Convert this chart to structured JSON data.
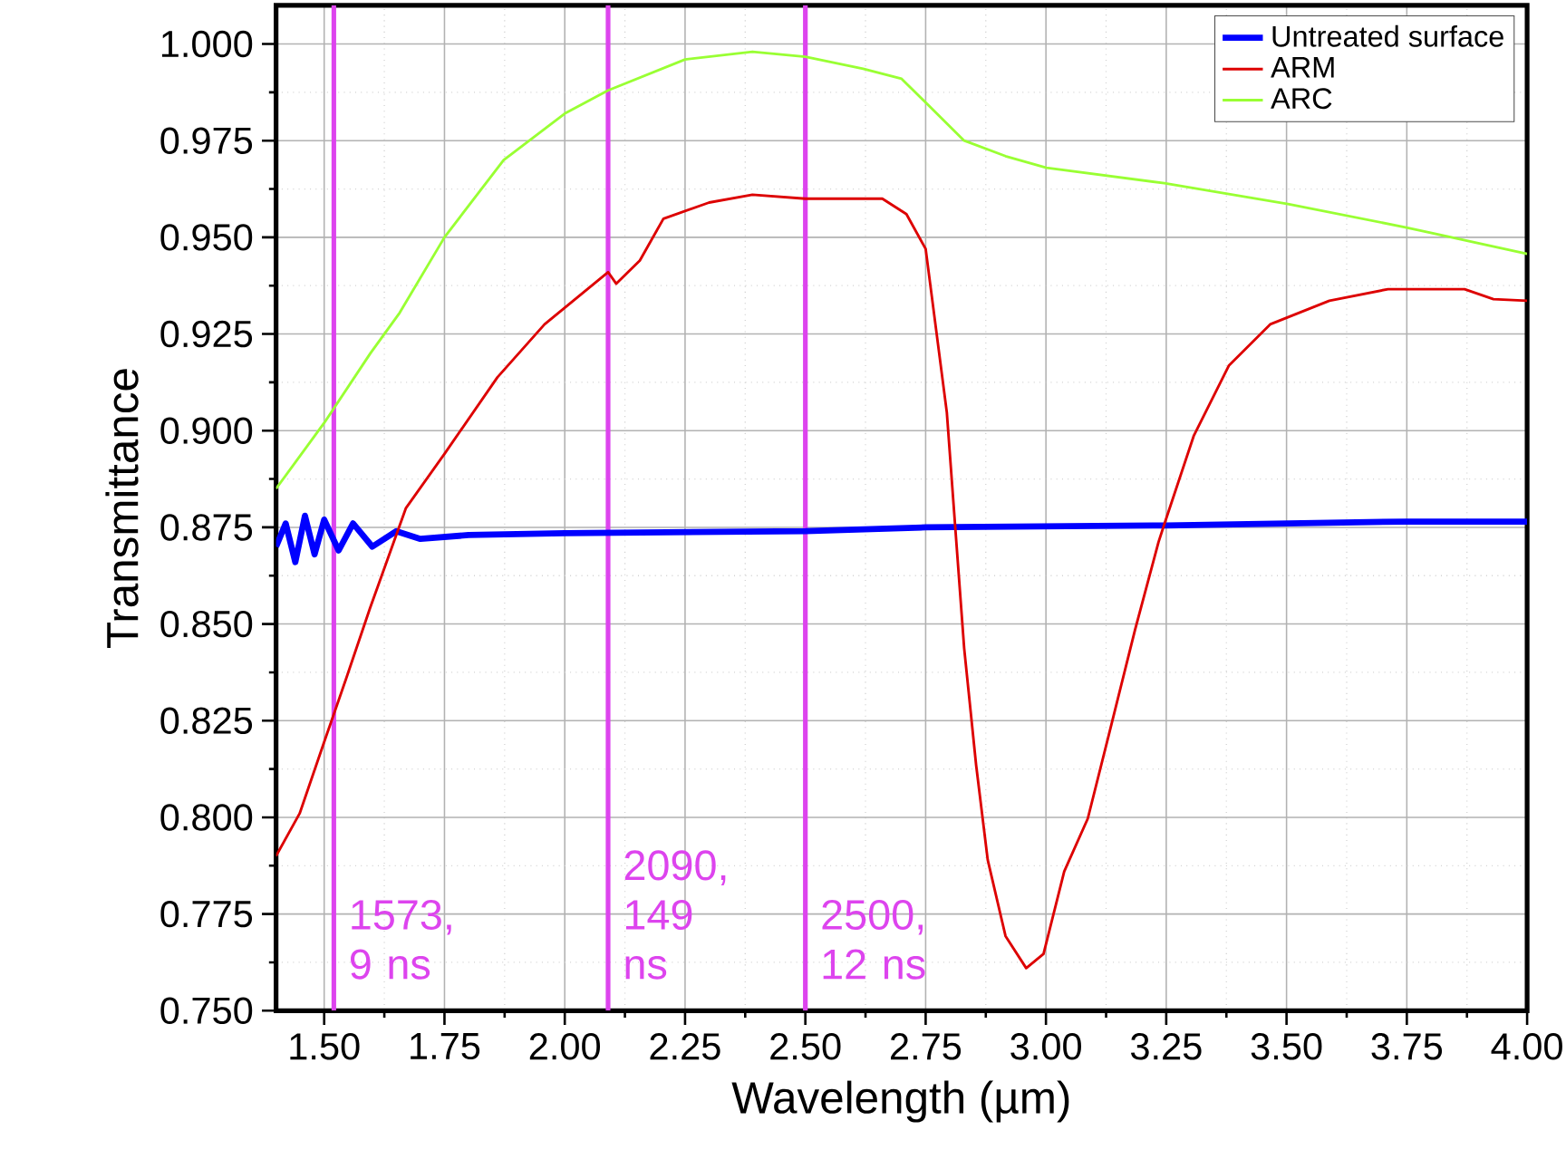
{
  "chart_data": {
    "type": "line",
    "xlabel": "Wavelength (µm)",
    "ylabel": "Transmittance",
    "xlim": [
      1.4,
      4.0
    ],
    "ylim": [
      0.75,
      1.01
    ],
    "xticks": [
      {
        "value": 1.5,
        "label": "1.50"
      },
      {
        "value": 1.75,
        "label": "1.75"
      },
      {
        "value": 2.0,
        "label": "2.00"
      },
      {
        "value": 2.25,
        "label": "2.25"
      },
      {
        "value": 2.5,
        "label": "2.50"
      },
      {
        "value": 2.75,
        "label": "2.75"
      },
      {
        "value": 3.0,
        "label": "3.00"
      },
      {
        "value": 3.25,
        "label": "3.25"
      },
      {
        "value": 3.5,
        "label": "3.50"
      },
      {
        "value": 3.75,
        "label": "3.75"
      },
      {
        "value": 4.0,
        "label": "4.00"
      }
    ],
    "yticks": [
      {
        "value": 0.75,
        "label": "0.750"
      },
      {
        "value": 0.775,
        "label": "0.775"
      },
      {
        "value": 0.8,
        "label": "0.800"
      },
      {
        "value": 0.825,
        "label": "0.825"
      },
      {
        "value": 0.85,
        "label": "0.850"
      },
      {
        "value": 0.875,
        "label": "0.875"
      },
      {
        "value": 0.9,
        "label": "0.900"
      },
      {
        "value": 0.925,
        "label": "0.925"
      },
      {
        "value": 0.95,
        "label": "0.950"
      },
      {
        "value": 0.975,
        "label": "0.975"
      },
      {
        "value": 1.0,
        "label": "1.000"
      }
    ],
    "grid": true,
    "legend": "top right",
    "marker": "none",
    "line_style": "solid",
    "series": [
      {
        "name": "Untreated surface",
        "color": "#0000ff",
        "x": [
          1.4,
          1.42,
          1.44,
          1.46,
          1.48,
          1.5,
          1.53,
          1.56,
          1.6,
          1.65,
          1.7,
          1.8,
          2.0,
          2.5,
          2.75,
          3.25,
          3.75,
          4.0
        ],
        "values": [
          0.87,
          0.876,
          0.866,
          0.878,
          0.868,
          0.877,
          0.869,
          0.876,
          0.87,
          0.874,
          0.872,
          0.873,
          0.8735,
          0.874,
          0.875,
          0.8755,
          0.8765,
          0.8765
        ]
      },
      {
        "name": "ARM",
        "color": "#dd0000",
        "x": [
          1.4,
          1.449,
          1.5,
          1.546,
          1.595,
          1.644,
          1.67,
          1.75,
          1.86,
          1.958,
          2.09,
          2.107,
          2.156,
          2.205,
          2.3,
          2.39,
          2.5,
          2.66,
          2.71,
          2.75,
          2.794,
          2.812,
          2.83,
          2.855,
          2.879,
          2.916,
          2.959,
          2.995,
          3.038,
          3.087,
          3.136,
          3.185,
          3.234,
          3.246,
          3.307,
          3.38,
          3.466,
          3.589,
          3.711,
          3.87,
          3.93,
          4.0
        ],
        "values": [
          0.79,
          0.801,
          0.8195,
          0.836,
          0.854,
          0.871,
          0.88,
          0.894,
          0.9138,
          0.9275,
          0.941,
          0.938,
          0.944,
          0.9548,
          0.959,
          0.961,
          0.96,
          0.96,
          0.956,
          0.947,
          0.9047,
          0.8742,
          0.8438,
          0.8134,
          0.789,
          0.7693,
          0.761,
          0.7647,
          0.786,
          0.7997,
          0.824,
          0.8484,
          0.8712,
          0.8758,
          0.8986,
          0.9168,
          0.9275,
          0.9336,
          0.9366,
          0.9366,
          0.934,
          0.9336
        ]
      },
      {
        "name": "ARC",
        "color": "#99ff33",
        "x": [
          1.4,
          1.5,
          1.596,
          1.657,
          1.75,
          1.873,
          2.0,
          2.09,
          2.25,
          2.39,
          2.5,
          2.62,
          2.7,
          2.757,
          2.83,
          2.916,
          3.001,
          3.246,
          3.503,
          3.747,
          4.0
        ],
        "values": [
          0.885,
          0.902,
          0.92,
          0.9305,
          0.95,
          0.97,
          0.982,
          0.988,
          0.996,
          0.998,
          0.9967,
          0.9936,
          0.991,
          0.984,
          0.975,
          0.971,
          0.968,
          0.964,
          0.9586,
          0.9526,
          0.9457
        ]
      }
    ],
    "ref_lines": [
      {
        "axis": "x",
        "value": 1.52,
        "label": "1573, 9 ns",
        "color": "#dd44ee"
      },
      {
        "axis": "x",
        "value": 2.09,
        "label": "2090, 149 ns",
        "color": "#dd44ee"
      },
      {
        "axis": "x",
        "value": 2.5,
        "label": "2500, 12 ns",
        "color": "#dd44ee"
      }
    ]
  }
}
